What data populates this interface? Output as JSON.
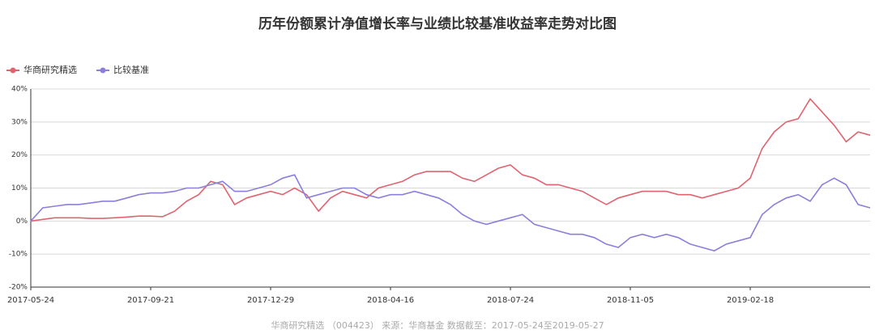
{
  "chart_data": {
    "type": "line",
    "title": "历年份额累计净值增长率与业绩比较基准收益率走势对比图",
    "footer": "华商研究精选 （004423） 来源：华商基金 数据截至：2017-05-24至2019-05-27",
    "x": [
      "2017-05-24",
      null,
      null,
      null,
      null,
      null,
      null,
      null,
      null,
      null,
      "2017-09-21",
      null,
      null,
      null,
      null,
      null,
      null,
      null,
      null,
      null,
      "2017-12-29",
      null,
      null,
      null,
      null,
      null,
      null,
      null,
      null,
      null,
      "2018-04-16",
      null,
      null,
      null,
      null,
      null,
      null,
      null,
      null,
      null,
      "2018-07-24",
      null,
      null,
      null,
      null,
      null,
      null,
      null,
      null,
      null,
      "2018-11-05",
      null,
      null,
      null,
      null,
      null,
      null,
      null,
      null,
      null,
      "2019-02-18",
      null,
      null,
      null,
      null,
      null,
      null,
      null,
      null,
      null,
      null
    ],
    "series": [
      {
        "name": "华商研究精选",
        "color": "#e0636f",
        "values": [
          0,
          0.5,
          1,
          1,
          1,
          0.8,
          0.8,
          1,
          1.2,
          1.5,
          1.5,
          1.3,
          3,
          6,
          8,
          12,
          11,
          5,
          7,
          8,
          9,
          8,
          10,
          8,
          3,
          7,
          9,
          8,
          7,
          10,
          11,
          12,
          14,
          15,
          15,
          15,
          13,
          12,
          14,
          16,
          17,
          14,
          13,
          11,
          11,
          10,
          9,
          7,
          5,
          7,
          8,
          9,
          9,
          9,
          8,
          8,
          7,
          8,
          9,
          10,
          13,
          22,
          27,
          30,
          31,
          37,
          33,
          29,
          24,
          27,
          26
        ]
      },
      {
        "name": "比较基准",
        "color": "#8a7fdc",
        "values": [
          0,
          4,
          4.5,
          5,
          5,
          5.5,
          6,
          6,
          7,
          8,
          8.5,
          8.5,
          9,
          10,
          10,
          11,
          12,
          9,
          9,
          10,
          11,
          13,
          14,
          7,
          8,
          9,
          10,
          10,
          8,
          7,
          8,
          8,
          9,
          8,
          7,
          5,
          2,
          0,
          -1,
          0,
          1,
          2,
          -1,
          -2,
          -3,
          -4,
          -4,
          -5,
          -7,
          -8,
          -5,
          -4,
          -5,
          -4,
          -5,
          -7,
          -8,
          -9,
          -7,
          -6,
          -5,
          2,
          5,
          7,
          8,
          6,
          11,
          13,
          11,
          5,
          4
        ]
      }
    ],
    "ylim": [
      -20,
      40
    ],
    "yticks": [
      {
        "value": -20,
        "label": "-20%"
      },
      {
        "value": -10,
        "label": "-10%"
      },
      {
        "value": 0,
        "label": "0%"
      },
      {
        "value": 10,
        "label": "10%"
      },
      {
        "value": 20,
        "label": "20%"
      },
      {
        "value": 30,
        "label": "30%"
      },
      {
        "value": 40,
        "label": "40%"
      }
    ],
    "grid": true,
    "legend": "top-left"
  }
}
